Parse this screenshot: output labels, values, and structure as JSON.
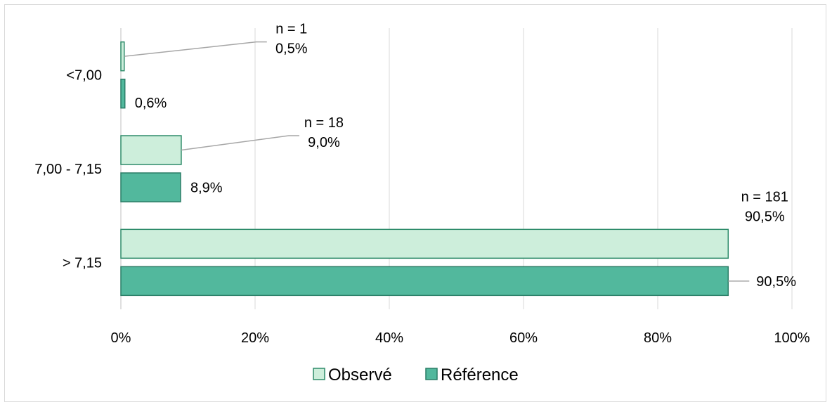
{
  "chart_data": {
    "type": "bar",
    "orientation": "horizontal",
    "categories": [
      "<7,00",
      "7,00 - 7,15",
      "> 7,15"
    ],
    "series": [
      {
        "name": "Observé",
        "values": [
          0.5,
          9.0,
          90.5
        ],
        "labels": [
          [
            "n = 1",
            "0,5%"
          ],
          [
            "n = 18",
            "9,0%"
          ],
          [
            "n = 181",
            "90,5%"
          ]
        ],
        "color": "#cdeedb",
        "stroke": "#2e8b6a"
      },
      {
        "name": "Référence",
        "values": [
          0.6,
          8.9,
          90.5
        ],
        "labels": [
          [
            "0,6%"
          ],
          [
            "8,9%"
          ],
          [
            "90,5%"
          ]
        ],
        "color": "#52b89d",
        "stroke": "#2a7d66"
      }
    ],
    "xlim": [
      0,
      100
    ],
    "xticks": [
      "0%",
      "20%",
      "40%",
      "60%",
      "80%",
      "100%"
    ],
    "grid": "vertical",
    "legend": "bottom",
    "title": "",
    "xlabel": "",
    "ylabel": ""
  }
}
